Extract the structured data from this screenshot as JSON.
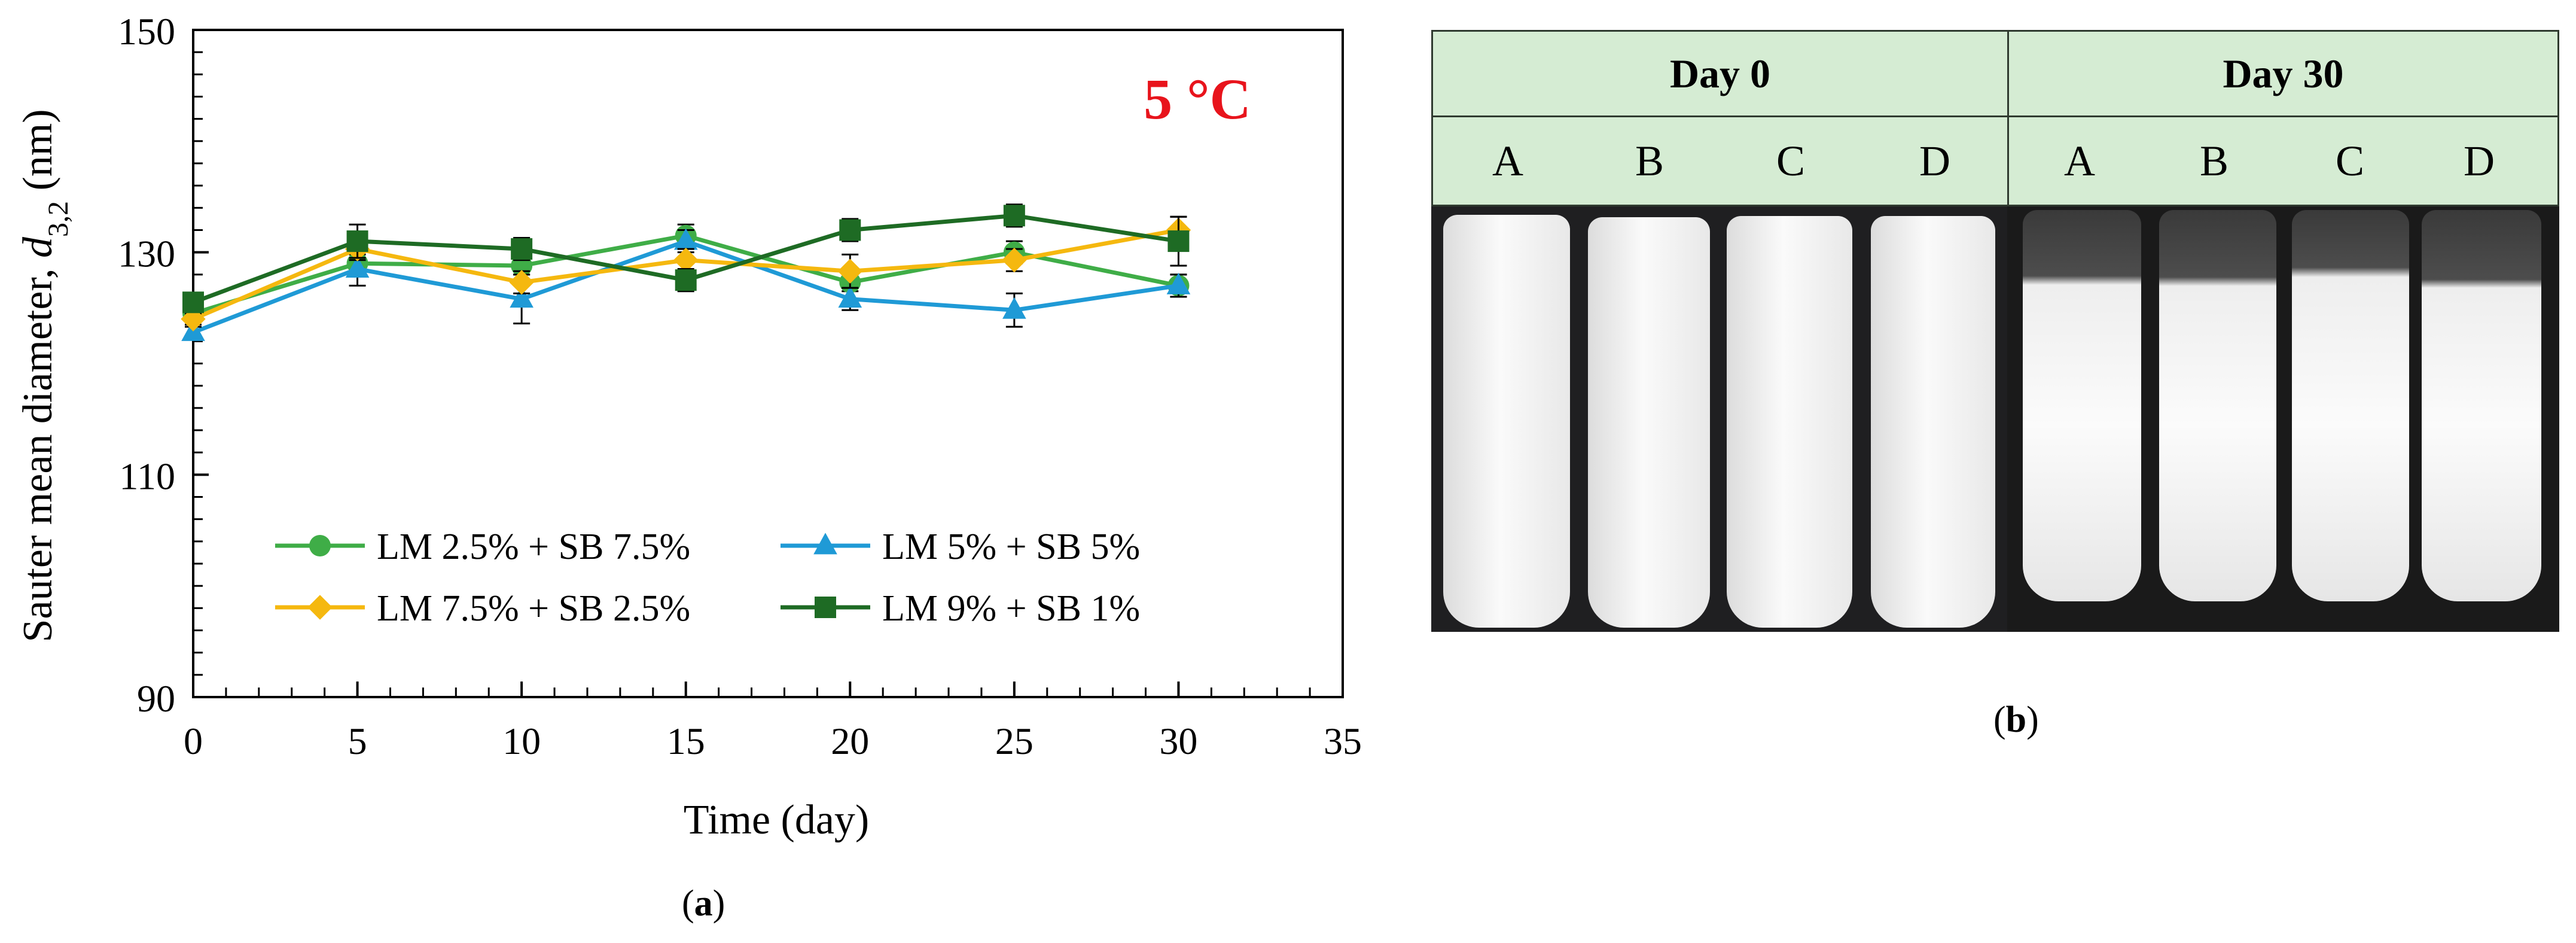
{
  "chart_data": {
    "type": "line",
    "title": "",
    "annotation": "5 °C",
    "annotation_color": "#e8141c",
    "xlabel": "Time (day)",
    "ylabel_main": "Sauter mean diameter, ",
    "ylabel_symbol": "d",
    "ylabel_subscript": "3,2",
    "ylabel_unit": " (nm)",
    "xlim": [
      0,
      35
    ],
    "ylim": [
      90,
      150
    ],
    "xticks": [
      0,
      5,
      10,
      15,
      20,
      25,
      30,
      35
    ],
    "yticks": [
      90,
      110,
      130,
      150
    ],
    "x": [
      0,
      5,
      10,
      15,
      20,
      25,
      30
    ],
    "legend_position": "lower-center",
    "series": [
      {
        "name": "LM 2.5% + SB 7.5%",
        "color": "#3fad47",
        "marker": "circle",
        "values": [
          124.5,
          129,
          128.8,
          131.5,
          127.3,
          130,
          127
        ],
        "errors": [
          0.5,
          0.8,
          0.8,
          1,
          0.8,
          1,
          1
        ]
      },
      {
        "name": "LM 5% + SB 5%",
        "color": "#1f9ad6",
        "marker": "triangle",
        "values": [
          122.8,
          128.5,
          125.8,
          131,
          125.8,
          124.8,
          127
        ],
        "errors": [
          0.5,
          1.5,
          2.2,
          1,
          1,
          1.5,
          1
        ]
      },
      {
        "name": "LM 7.5% + SB 2.5%",
        "color": "#f5b80f",
        "marker": "diamond",
        "values": [
          124,
          130.3,
          127.3,
          129.3,
          128.3,
          129.3,
          132
        ],
        "errors": [
          0.5,
          1,
          1,
          1,
          1.5,
          1,
          1.2
        ]
      },
      {
        "name": "LM 9% + SB 1%",
        "color": "#1e6b24",
        "marker": "square",
        "values": [
          125.5,
          131,
          130.3,
          127.5,
          132,
          133.3,
          131
        ],
        "errors": [
          0.5,
          1.5,
          1,
          1,
          1,
          1,
          2.2
        ]
      }
    ]
  },
  "panel_a": {
    "label": "a"
  },
  "panel_b": {
    "label": "b",
    "groups": [
      {
        "header": "Day 0",
        "vials": [
          "A",
          "B",
          "C",
          "D"
        ]
      },
      {
        "header": "Day 30",
        "vials": [
          "A",
          "B",
          "C",
          "D"
        ]
      }
    ]
  }
}
